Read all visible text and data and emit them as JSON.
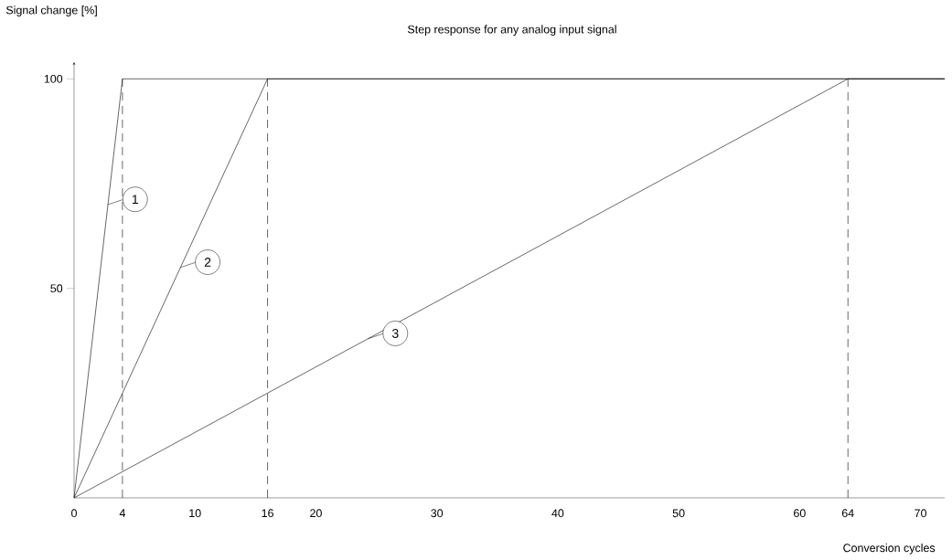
{
  "chart_data": {
    "type": "line",
    "title": "Step response for any analog input signal",
    "xlabel": "Conversion cycles",
    "ylabel": "Signal change [%]",
    "xlim": [
      0,
      72
    ],
    "ylim": [
      0,
      104
    ],
    "xticks": [
      0,
      4,
      10,
      16,
      20,
      30,
      40,
      50,
      60,
      64,
      70
    ],
    "yticks": [
      50,
      100
    ],
    "line_style": "solid",
    "legend": "top left",
    "series": [
      {
        "name": "1",
        "color": "#000000",
        "x": [
          0,
          4,
          72
        ],
        "values": [
          0,
          100,
          100
        ]
      },
      {
        "name": "2",
        "color": "#000000",
        "x": [
          0,
          16,
          72
        ],
        "values": [
          0,
          100,
          100
        ]
      },
      {
        "name": "3",
        "color": "#000000",
        "x": [
          0,
          64,
          72
        ],
        "values": [
          0,
          100,
          100
        ]
      }
    ],
    "ref_lines": [
      {
        "axis": "x",
        "value": 4,
        "line_style": "dashed",
        "color": "#000000"
      },
      {
        "axis": "x",
        "value": 16,
        "line_style": "dashed",
        "color": "#000000"
      },
      {
        "axis": "x",
        "value": 64,
        "line_style": "dashed",
        "color": "#000000"
      }
    ]
  }
}
